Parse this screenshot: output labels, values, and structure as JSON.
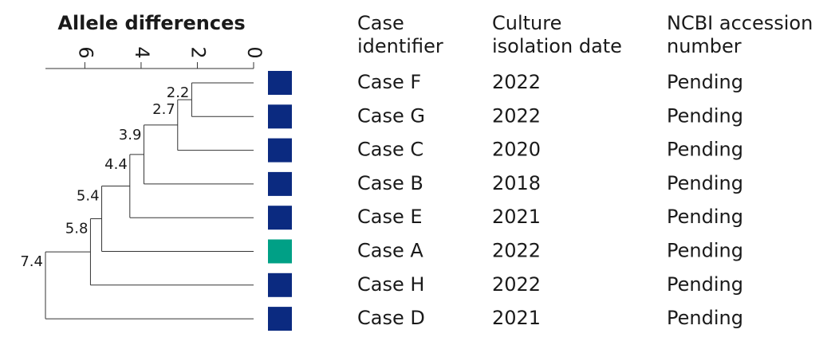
{
  "chart_data": {
    "type": "dendrogram",
    "title": "Allele differences",
    "xlim": [
      0,
      7.4
    ],
    "xticks": [
      0,
      2,
      4,
      6
    ],
    "merge_heights": [
      2.2,
      2.7,
      3.9,
      4.4,
      5.4,
      5.8,
      7.4
    ],
    "colors": [
      "#0b2a80",
      "#0b2a80",
      "#0b2a80",
      "#0b2a80",
      "#0b2a80",
      "#00a086",
      "#0b2a80",
      "#0b2a80"
    ],
    "table": {
      "header": [
        [
          "Case",
          "identifier"
        ],
        [
          "Culture",
          "isolation date"
        ],
        [
          "NCBI accession",
          "number"
        ]
      ],
      "rows": [
        [
          "Case F",
          "2022",
          "Pending"
        ],
        [
          "Case G",
          "2022",
          "Pending"
        ],
        [
          "Case C",
          "2020",
          "Pending"
        ],
        [
          "Case B",
          "2018",
          "Pending"
        ],
        [
          "Case E",
          "2021",
          "Pending"
        ],
        [
          "Case A",
          "2022",
          "Pending"
        ],
        [
          "Case H",
          "2022",
          "Pending"
        ],
        [
          "Case D",
          "2021",
          "Pending"
        ]
      ]
    }
  }
}
